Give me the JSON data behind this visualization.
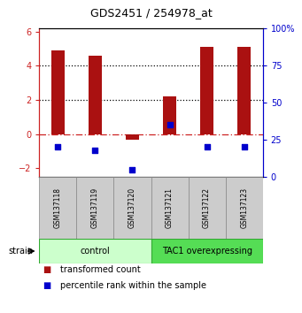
{
  "title": "GDS2451 / 254978_at",
  "samples": [
    "GSM137118",
    "GSM137119",
    "GSM137120",
    "GSM137121",
    "GSM137122",
    "GSM137123"
  ],
  "transformed_counts": [
    4.9,
    4.6,
    -0.3,
    2.2,
    5.1,
    5.1
  ],
  "percentile_ranks": [
    20,
    18,
    5,
    35,
    20,
    20
  ],
  "bar_color": "#AA1111",
  "dot_color": "#0000CC",
  "ylim_left": [
    -2.5,
    6.2
  ],
  "ylim_right": [
    0,
    100
  ],
  "yticks_left": [
    -2,
    0,
    2,
    4,
    6
  ],
  "yticks_right": [
    0,
    25,
    50,
    75,
    100
  ],
  "yright_labels": [
    "0",
    "25",
    "50",
    "75",
    "100%"
  ],
  "groups": [
    {
      "label": "control",
      "samples": [
        0,
        1,
        2
      ],
      "color": "#ccffcc",
      "border": "#33aa33"
    },
    {
      "label": "TAC1 overexpressing",
      "samples": [
        3,
        4,
        5
      ],
      "color": "#55dd55",
      "border": "#33aa33"
    }
  ],
  "legend_items": [
    {
      "color": "#AA1111",
      "label": "transformed count"
    },
    {
      "color": "#0000CC",
      "label": "percentile rank within the sample"
    }
  ],
  "background_color": "#ffffff"
}
